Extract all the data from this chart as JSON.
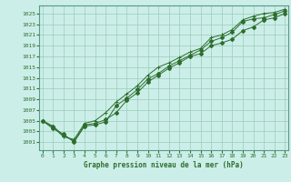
{
  "title": "Graphe pression niveau de la mer (hPa)",
  "background_color": "#cceee8",
  "grid_color": "#99ccbb",
  "line_color": "#2d6e2d",
  "x_ticks": [
    0,
    1,
    2,
    3,
    4,
    5,
    6,
    7,
    8,
    9,
    10,
    11,
    12,
    13,
    14,
    15,
    16,
    17,
    18,
    19,
    20,
    21,
    22,
    23
  ],
  "y_ticks": [
    1001,
    1003,
    1005,
    1007,
    1009,
    1011,
    1013,
    1015,
    1017,
    1019,
    1021,
    1023,
    1025
  ],
  "ylim": [
    999.5,
    1026.5
  ],
  "xlim": [
    -0.3,
    23.3
  ],
  "series1": [
    1005.0,
    1004.0,
    1002.2,
    1001.2,
    1004.2,
    1004.5,
    1005.2,
    1006.5,
    1008.8,
    1010.2,
    1012.2,
    1013.5,
    1014.8,
    1015.8,
    1017.0,
    1017.5,
    1019.0,
    1019.5,
    1020.2,
    1021.8,
    1022.5,
    1023.8,
    1024.2,
    1025.0
  ],
  "series2": [
    1005.0,
    1003.5,
    1002.5,
    1001.0,
    1004.0,
    1004.2,
    1004.8,
    1007.8,
    1009.2,
    1010.8,
    1012.8,
    1013.8,
    1015.2,
    1016.2,
    1017.2,
    1018.2,
    1019.8,
    1020.5,
    1021.5,
    1023.5,
    1024.0,
    1024.2,
    1024.8,
    1025.5
  ],
  "series3_x": [
    0,
    1,
    2,
    3,
    4,
    5,
    6,
    7,
    8,
    9,
    10,
    11,
    12,
    13,
    14,
    15,
    16,
    17,
    18,
    19,
    20,
    21,
    22,
    23
  ],
  "series3": [
    1005.0,
    1003.8,
    1002.0,
    1001.5,
    1004.5,
    1005.0,
    1006.5,
    1008.5,
    1010.0,
    1011.5,
    1013.5,
    1015.0,
    1015.8,
    1016.8,
    1017.8,
    1018.5,
    1020.5,
    1021.0,
    1022.0,
    1023.8,
    1024.5,
    1025.0,
    1025.2,
    1025.8
  ]
}
